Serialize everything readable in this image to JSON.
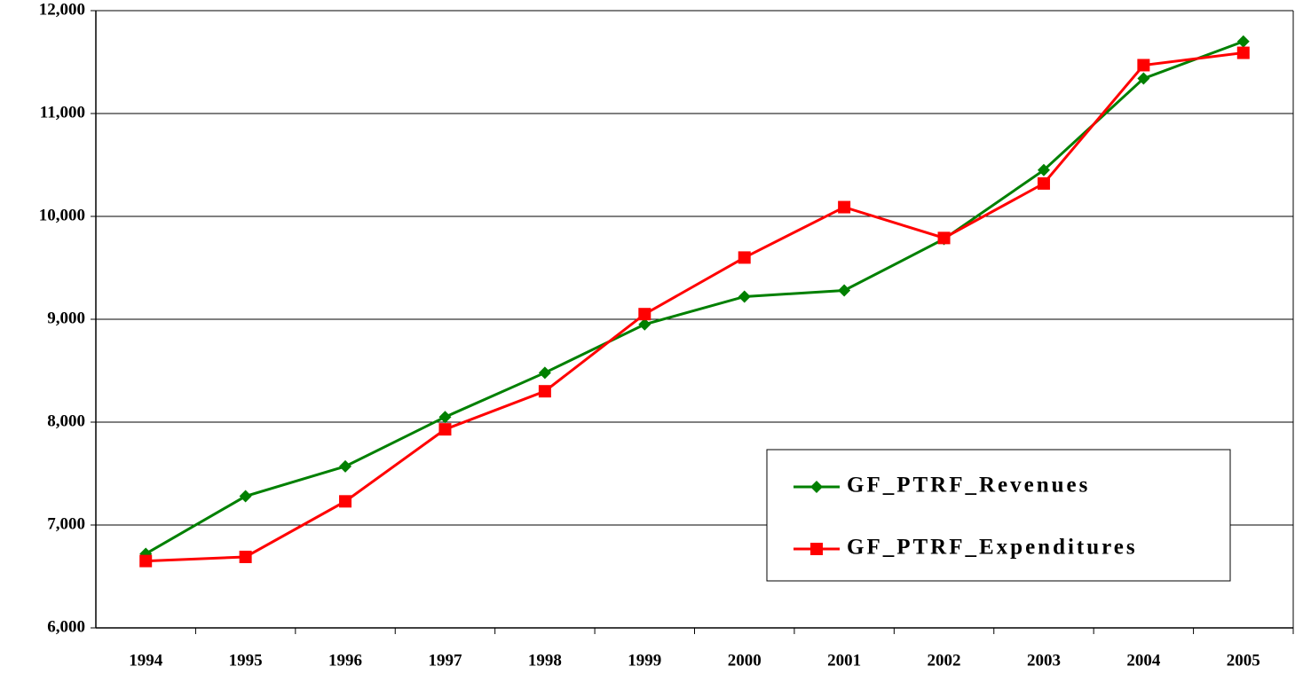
{
  "chart_data": {
    "type": "line",
    "categories": [
      "1994",
      "1995",
      "1996",
      "1997",
      "1998",
      "1999",
      "2000",
      "2001",
      "2002",
      "2003",
      "2004",
      "2005"
    ],
    "series": [
      {
        "name": "GF_PTRF_Revenues",
        "color": "#008000",
        "marker": "diamond",
        "values": [
          6720,
          7280,
          7570,
          8050,
          8480,
          8950,
          9220,
          9280,
          9780,
          10450,
          11340,
          11700
        ]
      },
      {
        "name": "GF_PTRF_Expenditures",
        "color": "#ff0000",
        "marker": "square",
        "values": [
          6650,
          6690,
          7230,
          7930,
          8300,
          9050,
          9600,
          10090,
          9790,
          10320,
          11470,
          11590
        ]
      }
    ],
    "ylim": [
      6000,
      12000
    ],
    "yticks": [
      {
        "value": 6000,
        "label": "6,000"
      },
      {
        "value": 7000,
        "label": "7,000"
      },
      {
        "value": 8000,
        "label": "8,000"
      },
      {
        "value": 9000,
        "label": "9,000"
      },
      {
        "value": 10000,
        "label": "10,000"
      },
      {
        "value": 11000,
        "label": "11,000"
      },
      {
        "value": 12000,
        "label": "12,000"
      }
    ],
    "grid": true,
    "legend": "lower right"
  }
}
